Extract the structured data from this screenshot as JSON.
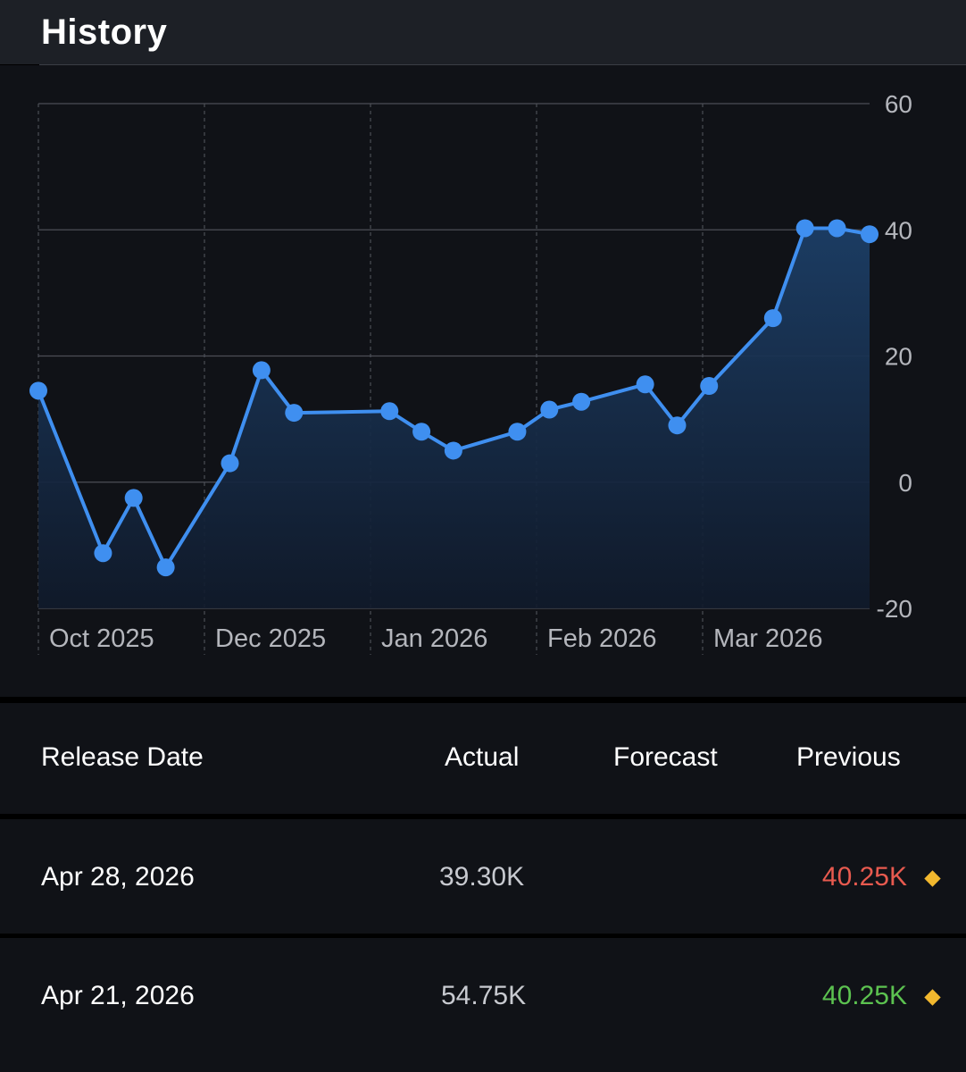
{
  "header": {
    "title": "History"
  },
  "chart_data": {
    "type": "line",
    "x_labels": [
      "Oct 2025",
      "Dec 2025",
      "Jan 2026",
      "Feb 2026",
      "Mar 2026"
    ],
    "y_ticks": [
      60,
      40,
      20,
      0,
      -20
    ],
    "ylim": [
      -20,
      60
    ],
    "values": [
      14.5,
      -11.25,
      -2.5,
      -13.5,
      3.0,
      17.75,
      11.0,
      11.25,
      8.0,
      5.0,
      8.0,
      11.5,
      12.75,
      15.5,
      9.0,
      15.25,
      26.0,
      40.25,
      40.25,
      39.3
    ],
    "grid": true,
    "colors": {
      "line": "#3f8ff0",
      "fill_top": "#1a3a60",
      "grid": "#4a4d55"
    }
  },
  "table": {
    "columns": [
      "Release Date",
      "Actual",
      "Forecast",
      "Previous"
    ],
    "rows": [
      {
        "date": "Apr 28, 2026",
        "actual": "39.30K",
        "forecast": "",
        "previous": "40.25K",
        "previous_color": "#e85a4f"
      },
      {
        "date": "Apr 21, 2026",
        "actual": "54.75K",
        "forecast": "",
        "previous": "40.25K",
        "previous_color": "#5cc250"
      }
    ]
  }
}
